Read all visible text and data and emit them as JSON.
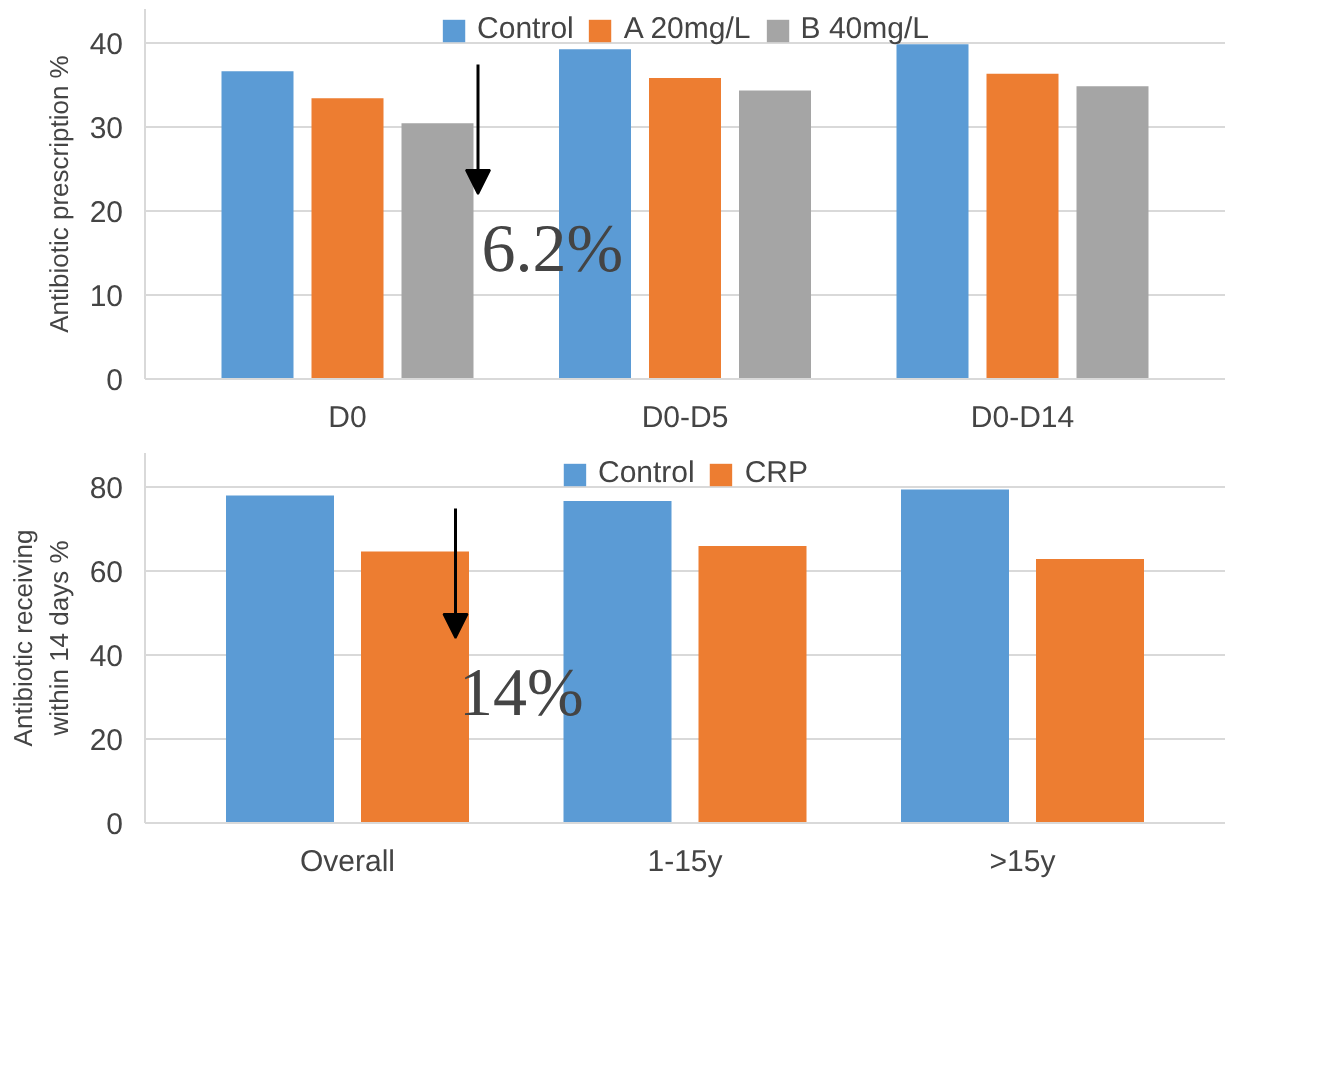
{
  "chart_data": [
    {
      "type": "bar",
      "ylabel": "Antibiotic prescription %",
      "categories": [
        "D0",
        "D0-D5",
        "D0-D14"
      ],
      "series": [
        {
          "name": "Control",
          "color": "#5b9bd5",
          "values": [
            36.6,
            39.2,
            39.8
          ]
        },
        {
          "name": "A 20mg/L",
          "color": "#ed7d31",
          "values": [
            33.4,
            35.8,
            36.3
          ]
        },
        {
          "name": "B 40mg/L",
          "color": "#a5a5a5",
          "values": [
            30.4,
            34.3,
            34.8
          ]
        }
      ],
      "ylim": [
        0,
        44
      ],
      "yticks": [
        0,
        10,
        20,
        30,
        40
      ],
      "grid": "y",
      "legend": "top",
      "annotations": [
        "6.2%"
      ]
    },
    {
      "type": "bar",
      "ylabel": "Antibiotic receiving\nwithin 14 days %",
      "categories": [
        "Overall",
        "1-15y",
        ">15y"
      ],
      "series": [
        {
          "name": "Control",
          "color": "#5b9bd5",
          "values": [
            77.9,
            76.6,
            79.3
          ]
        },
        {
          "name": "CRP",
          "color": "#ed7d31",
          "values": [
            64.6,
            65.9,
            62.8
          ]
        }
      ],
      "ylim": [
        0,
        88
      ],
      "yticks": [
        0,
        20,
        40,
        60,
        80
      ],
      "grid": "y",
      "legend": "top",
      "annotations": [
        "14%"
      ]
    }
  ]
}
